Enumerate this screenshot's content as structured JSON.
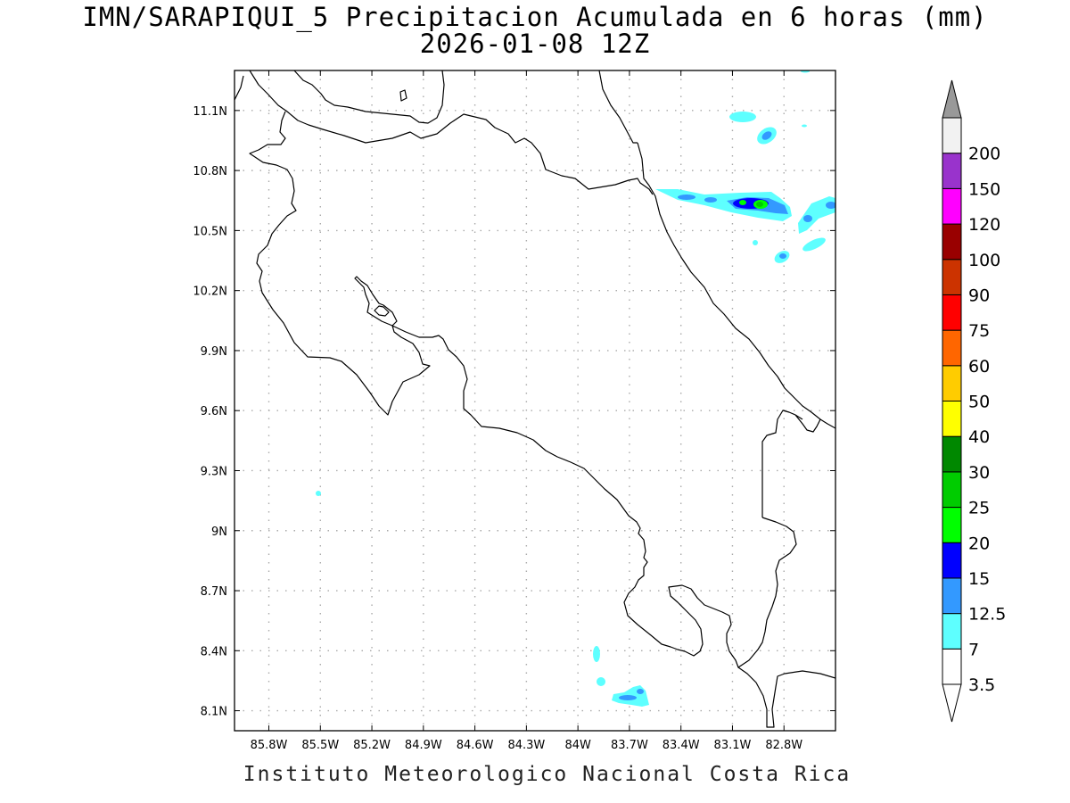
{
  "title": {
    "line1": "IMN/SARAPIQUI_5 Precipitacion Acumulada en 6 horas (mm)",
    "line2": "2026-01-08 12Z"
  },
  "footer": "Instituto Meteorologico Nacional Costa Rica",
  "map": {
    "lon_range": [
      -86.0,
      -82.5
    ],
    "lat_range": [
      8.0,
      11.3
    ],
    "lon_ticks": [
      "85.8W",
      "85.5W",
      "85.2W",
      "84.9W",
      "84.6W",
      "84.3W",
      "84W",
      "83.7W",
      "83.4W",
      "83.1W",
      "82.8W"
    ],
    "lat_ticks": [
      "11.1N",
      "10.8N",
      "10.5N",
      "10.2N",
      "9.9N",
      "9.6N",
      "9.3N",
      "9N",
      "8.7N",
      "8.4N",
      "8.1N"
    ],
    "grid": "dotted",
    "coastline_color": "#000000"
  },
  "colorbar": {
    "labels": [
      "3.5",
      "7",
      "12.5",
      "15",
      "20",
      "25",
      "30",
      "40",
      "50",
      "60",
      "75",
      "90",
      "100",
      "120",
      "150",
      "200"
    ],
    "colors": [
      "#ffffff",
      "#5effff",
      "#3399ff",
      "#0000ff",
      "#00ff00",
      "#00cc00",
      "#008800",
      "#ffff00",
      "#ffcc00",
      "#ff6600",
      "#ff0000",
      "#cc3300",
      "#990000",
      "#ff00ff",
      "#9933cc",
      "#f2f2f2"
    ],
    "upper_arrow_color": "#999999",
    "lower_arrow_color": "#ffffff"
  }
}
